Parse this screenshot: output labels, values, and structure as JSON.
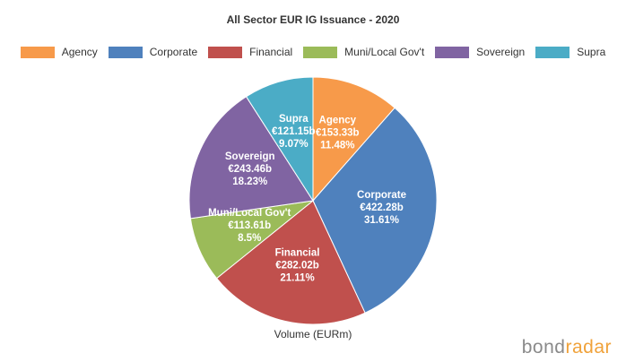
{
  "chart_data": {
    "type": "pie",
    "title": "All Sector EUR IG Issuance - 2020",
    "xlabel": "Volume (EURm)",
    "legend_position": "top",
    "slices": [
      {
        "name": "Agency",
        "value": 153.33,
        "value_label": "€153.33b",
        "percent_label": "11.48%",
        "color": "#f79a4a"
      },
      {
        "name": "Corporate",
        "value": 422.28,
        "value_label": "€422.28b",
        "percent_label": "31.61%",
        "color": "#4f81bd"
      },
      {
        "name": "Financial",
        "value": 282.02,
        "value_label": "€282.02b",
        "percent_label": "21.11%",
        "color": "#c0504d"
      },
      {
        "name": "Muni/Local Gov't",
        "value": 113.61,
        "value_label": "€113.61b",
        "percent_label": "8.5%",
        "color": "#9bbb59"
      },
      {
        "name": "Sovereign",
        "value": 243.46,
        "value_label": "€243.46b",
        "percent_label": "18.23%",
        "color": "#8064a2"
      },
      {
        "name": "Supra",
        "value": 121.15,
        "value_label": "€121.15b",
        "percent_label": "9.07%",
        "color": "#4bacc6"
      }
    ]
  },
  "logo": {
    "part1": "bond",
    "part2": "radar"
  }
}
